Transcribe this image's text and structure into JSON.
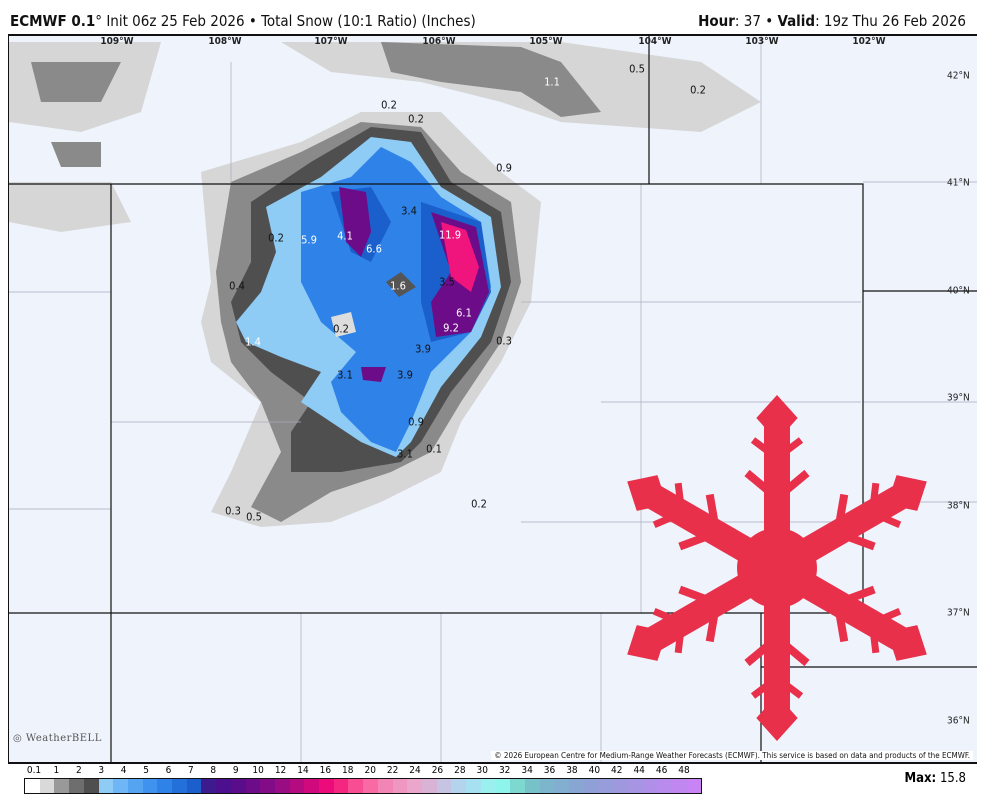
{
  "header": {
    "model": "ECMWF 0.1",
    "deg": "°",
    "rest": " Init 06z 25 Feb 2026 • Total Snow (10:1 Ratio) (Inches)",
    "hour_label": "Hour",
    "hour": ": 37 • ",
    "valid_label": "Valid",
    "valid": ": 19z Thu 26 Feb 2026"
  },
  "longitudes": [
    "109°W",
    "108°W",
    "107°W",
    "106°W",
    "105°W",
    "104°W",
    "103°W",
    "102°W"
  ],
  "latitudes": [
    "42°N",
    "41°N",
    "40°N",
    "39°N",
    "38°N",
    "37°N",
    "36°N"
  ],
  "values": [
    "0.5",
    "1.1",
    "0.2",
    "0.2",
    "0.2",
    "0.9",
    "3.4",
    "0.2",
    "5.9",
    "4.1",
    "11.9",
    "6.6",
    "0.4",
    "1.6",
    "3.5",
    "6.1",
    "9.2",
    "0.2",
    "0.3",
    "1.4",
    "3.9",
    "3.1",
    "3.9",
    "0.9",
    "0.1",
    "3.1",
    "0.2",
    "0.3",
    "0.5"
  ],
  "copyright": "© 2026 European Centre for Medium-Range Weather Forecasts (ECMWF). This service is based on data and products of the ECMWF.",
  "logo": "WeatherBELL",
  "overlay_icon": "snowflake-icon",
  "overlay_color": "#e8304a",
  "colorbar": {
    "ticks": [
      "0.1",
      "1",
      "2",
      "3",
      "4",
      "5",
      "6",
      "7",
      "8",
      "9",
      "10",
      "12",
      "14",
      "16",
      "18",
      "20",
      "22",
      "24",
      "26",
      "28",
      "30",
      "32",
      "34",
      "36",
      "38",
      "40",
      "42",
      "44",
      "46",
      "48"
    ],
    "colors": [
      "#ffffff",
      "#d9d9d9",
      "#999999",
      "#6e6e6e",
      "#4f4f4f",
      "#8ecbf5",
      "#6fb6f6",
      "#55a4f2",
      "#3f92ee",
      "#2f82e8",
      "#2470db",
      "#1a5fcb",
      "#3d1a8e",
      "#4c0f8e",
      "#5a0d8a",
      "#6d0c88",
      "#820c88",
      "#9a0c84",
      "#b40b80",
      "#d00a7d",
      "#ed0a7a",
      "#f5267f",
      "#f84d92",
      "#f96aa4",
      "#f285b5",
      "#ef97c0",
      "#eba6cb",
      "#d9b3d6",
      "#c7c3e2",
      "#b4d3ec",
      "#a5e1f0",
      "#9aefef",
      "#8ff5ec",
      "#7dd9cf",
      "#76c2c8",
      "#7cb6cc",
      "#82aecf",
      "#88a6d2",
      "#8ea0d6",
      "#979cdb",
      "#9f98df",
      "#a794e3",
      "#b08fe8",
      "#b88bec",
      "#c087f0",
      "#c884f5"
    ]
  },
  "max_label": "Max:",
  "max_value": "15.8"
}
